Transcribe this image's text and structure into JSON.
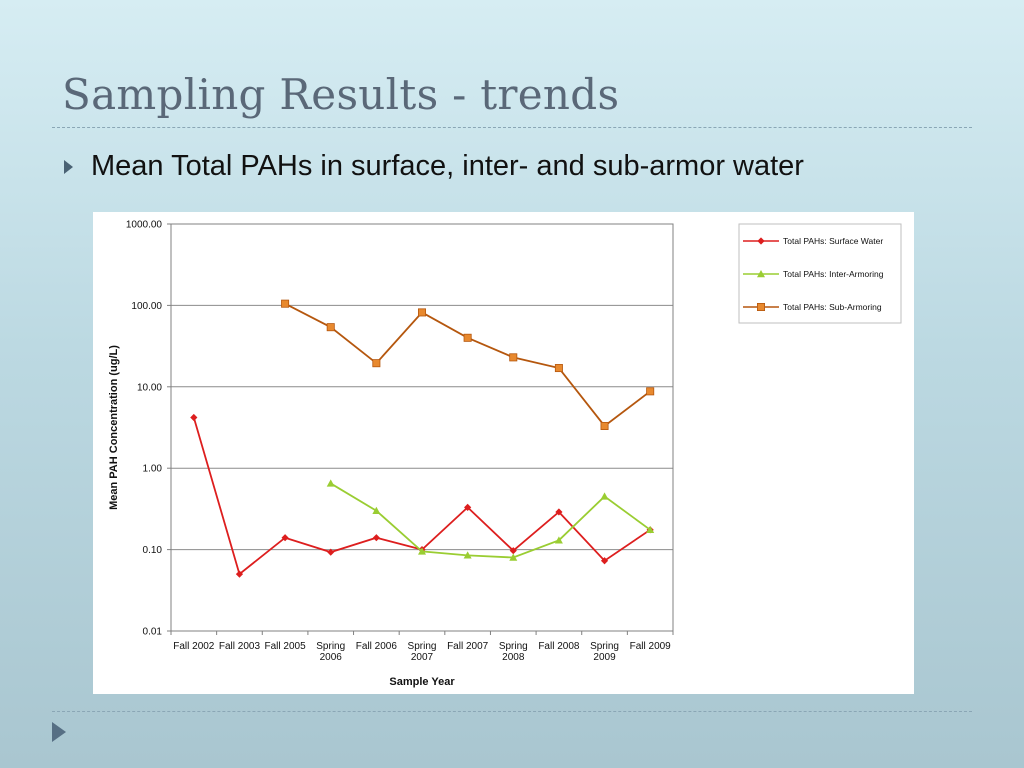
{
  "slide": {
    "title": "Sampling Results - trends",
    "bullet": "Mean Total PAHs in surface, inter- and sub-armor water"
  },
  "colors": {
    "surface": "#dd1e1e",
    "inter": "#9acd32",
    "sub": "#b5570e",
    "sub_marker": "#e8892e"
  },
  "chart_data": {
    "type": "line",
    "y_scale": "log",
    "ylim": [
      0.01,
      1000
    ],
    "yticks": [
      "0.01",
      "0.10",
      "1.00",
      "10.00",
      "100.00",
      "1000.00"
    ],
    "grid": true,
    "legend_position": "top-right",
    "xlabel": "Sample Year",
    "ylabel": "Mean PAH Concentration (ug/L)",
    "categories": [
      [
        "Fall 2002"
      ],
      [
        "Fall 2003"
      ],
      [
        "Fall 2005"
      ],
      [
        "Spring",
        "2006"
      ],
      [
        "Fall 2006"
      ],
      [
        "Spring",
        "2007"
      ],
      [
        "Fall 2007"
      ],
      [
        "Spring",
        "2008"
      ],
      [
        "Fall 2008"
      ],
      [
        "Spring",
        "2009"
      ],
      [
        "Fall 2009"
      ]
    ],
    "series": [
      {
        "name": "Total PAHs: Surface Water",
        "color": "#dd1e1e",
        "marker": "diamond",
        "values": [
          4.2,
          0.05,
          0.14,
          0.093,
          0.14,
          0.1,
          0.33,
          0.097,
          0.29,
          0.073,
          0.175
        ]
      },
      {
        "name": "Total PAHs: Inter-Armoring",
        "color": "#9acd32",
        "marker": "triangle",
        "values": [
          null,
          null,
          null,
          0.65,
          0.3,
          0.095,
          0.085,
          0.08,
          0.13,
          0.45,
          0.175
        ]
      },
      {
        "name": "Total PAHs: Sub-Armoring",
        "color": "#b5570e",
        "marker": "square",
        "values": [
          null,
          null,
          105,
          54,
          19.5,
          82,
          40,
          23,
          17,
          3.3,
          8.8
        ]
      }
    ]
  }
}
